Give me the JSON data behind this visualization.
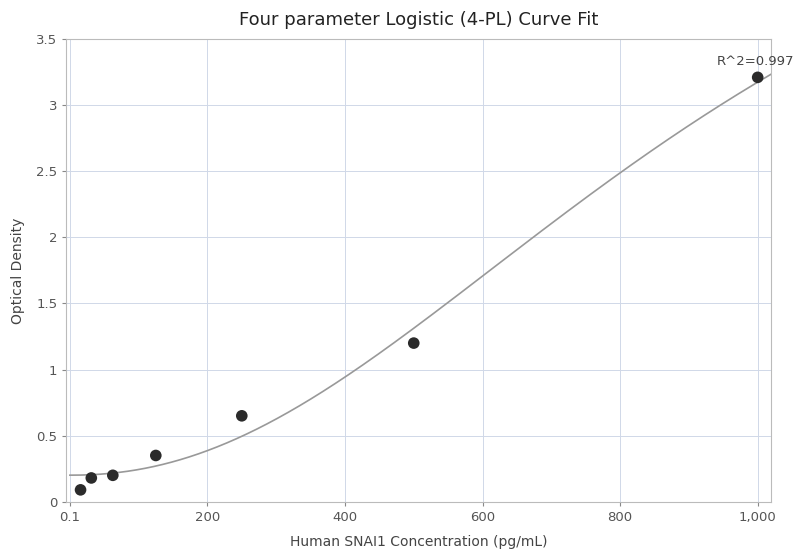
{
  "title": "Four parameter Logistic (4-PL) Curve Fit",
  "xlabel": "Human SNAI1 Concentration (pg/mL)",
  "ylabel": "Optical Density",
  "scatter_x": [
    15.6,
    31.25,
    62.5,
    125.0,
    250.0,
    500.0,
    1000.0
  ],
  "scatter_y": [
    0.09,
    0.18,
    0.2,
    0.35,
    0.65,
    1.2,
    3.21
  ],
  "r_squared_text": "R^2=0.997",
  "r_squared_x": 940,
  "r_squared_y": 3.28,
  "ylim": [
    0,
    3.5
  ],
  "yticks": [
    0,
    0.5,
    1.0,
    1.5,
    2.0,
    2.5,
    3.0,
    3.5
  ],
  "xtick_positions": [
    0.1,
    200,
    400,
    600,
    800,
    1000
  ],
  "xtick_labels": [
    "0.1",
    "200",
    "400",
    "600",
    "800",
    "1,000"
  ],
  "scatter_color": "#2b2b2b",
  "scatter_size": 70,
  "line_color": "#999999",
  "background_color": "#ffffff",
  "grid_color": "#d0d8e8",
  "title_fontsize": 13,
  "label_fontsize": 10,
  "tick_fontsize": 9.5,
  "annotation_fontsize": 9.5,
  "spine_color": "#bbbbbb",
  "tick_color": "#888888"
}
